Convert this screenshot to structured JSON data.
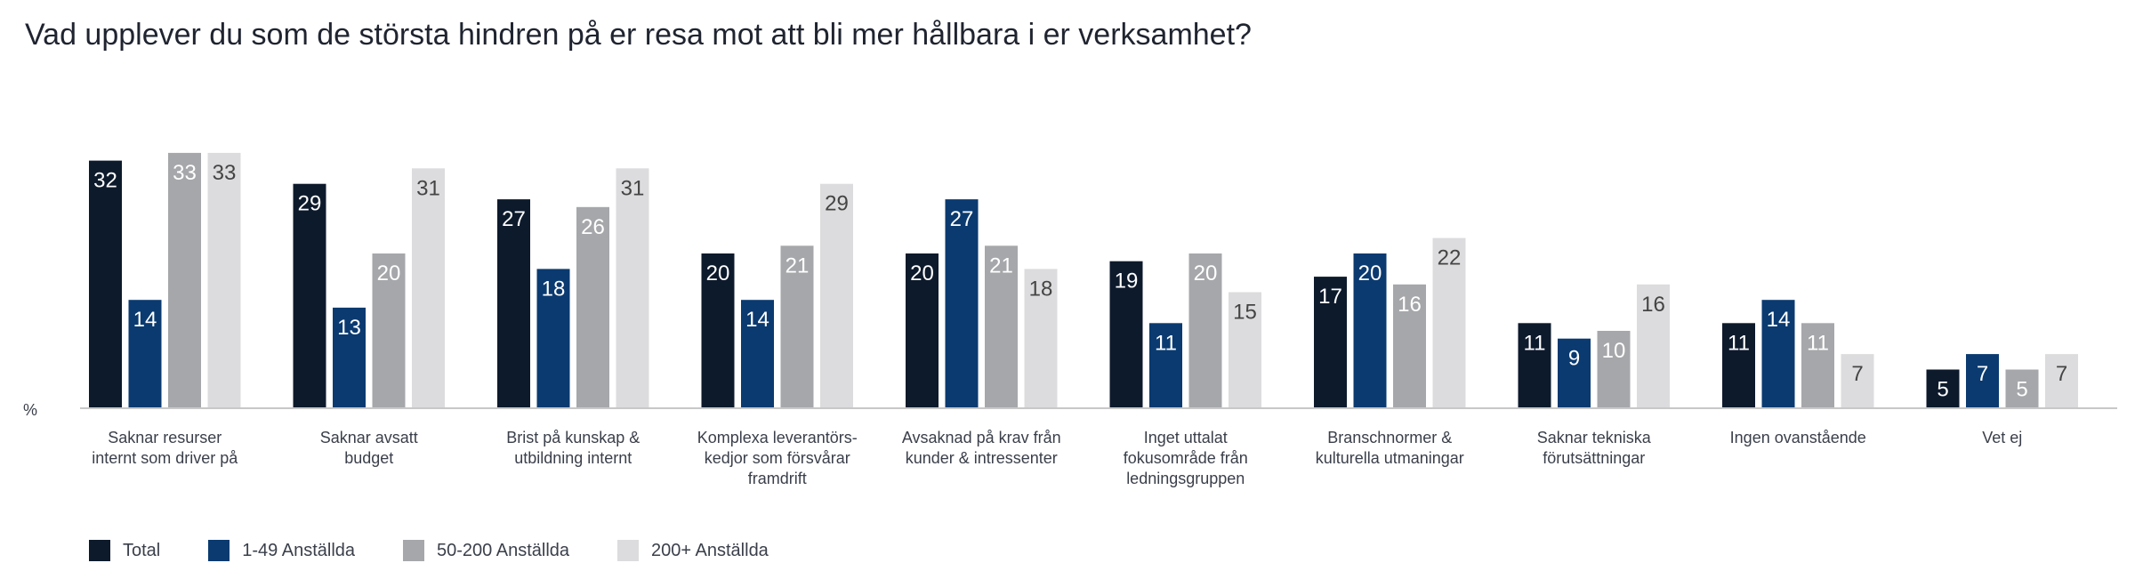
{
  "chart_data": {
    "type": "bar",
    "title": "Vad upplever du som de största hindren på er resa mot att bli mer hållbara i er verksamhet?",
    "ylabel": "%",
    "xlabel": "",
    "ylim": [
      0,
      35
    ],
    "grid": false,
    "legend_position": "bottom-left",
    "categories": [
      [
        "Saknar resurser",
        "internt som driver på"
      ],
      [
        "Saknar avsatt",
        "budget"
      ],
      [
        "Brist på kunskap &",
        "utbildning internt"
      ],
      [
        "Komplexa leverantörs-",
        "kedjor som försvårar",
        "framdrift"
      ],
      [
        "Avsaknad på krav från",
        "kunder & intressenter"
      ],
      [
        "Inget uttalat",
        "fokusområde från",
        "ledningsgruppen"
      ],
      [
        "Branschnormer &",
        "kulturella utmaningar"
      ],
      [
        "Saknar tekniska",
        "förutsättningar"
      ],
      [
        "Ingen ovanstående"
      ],
      [
        "Vet ej"
      ]
    ],
    "series": [
      {
        "name": "Total",
        "color": "#0d1a2c",
        "label_color": "#ffffff",
        "values": [
          32,
          29,
          27,
          20,
          20,
          19,
          17,
          11,
          11,
          5
        ]
      },
      {
        "name": "1-49 Anställda",
        "color": "#0a3a70",
        "label_color": "#ffffff",
        "values": [
          14,
          13,
          18,
          14,
          27,
          11,
          20,
          9,
          14,
          7
        ]
      },
      {
        "name": "50-200 Anställda",
        "color": "#a6a7aa",
        "label_color": "#ffffff",
        "values": [
          33,
          20,
          26,
          21,
          21,
          20,
          16,
          10,
          11,
          5
        ]
      },
      {
        "name": "200+ Anställda",
        "color": "#dcdcde",
        "label_color": "#444444",
        "values": [
          33,
          31,
          31,
          29,
          18,
          15,
          22,
          16,
          7,
          7
        ]
      }
    ]
  }
}
